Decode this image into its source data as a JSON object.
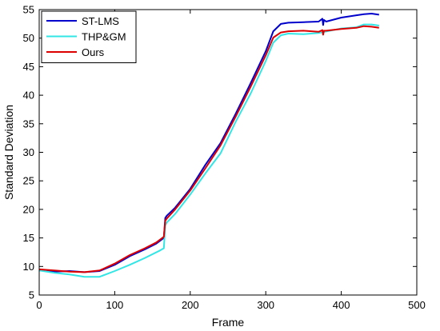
{
  "chart_data": {
    "type": "line",
    "title": "",
    "xlabel": "Frame",
    "ylabel": "Standard Deviation",
    "xlim": [
      0,
      500
    ],
    "ylim": [
      5,
      55
    ],
    "xticks": [
      0,
      100,
      200,
      300,
      400,
      500
    ],
    "yticks": [
      5,
      10,
      15,
      20,
      25,
      30,
      35,
      40,
      45,
      50,
      55
    ],
    "grid": false,
    "legend": "top-left",
    "series": [
      {
        "name": "ST-LMS",
        "color": "#0000cc",
        "x": [
          0,
          20,
          40,
          60,
          80,
          100,
          120,
          140,
          155,
          165,
          167,
          169,
          180,
          200,
          220,
          240,
          260,
          280,
          300,
          310,
          320,
          330,
          350,
          370,
          375,
          376,
          377,
          380,
          400,
          420,
          430,
          440,
          450
        ],
        "y": [
          9.3,
          9.1,
          9.2,
          9.0,
          9.2,
          10.3,
          11.8,
          13.0,
          14.0,
          15.0,
          18.5,
          18.9,
          20.3,
          23.6,
          27.8,
          31.6,
          36.7,
          42.1,
          47.7,
          51.2,
          52.5,
          52.7,
          52.8,
          52.9,
          53.4,
          52.3,
          53.2,
          52.9,
          53.6,
          54.0,
          54.2,
          54.3,
          54.1
        ]
      },
      {
        "name": "THP&GM",
        "color": "#33e6e6",
        "x": [
          0,
          20,
          40,
          60,
          80,
          100,
          120,
          140,
          160,
          165,
          167,
          169,
          180,
          200,
          220,
          240,
          260,
          280,
          300,
          310,
          320,
          330,
          350,
          370,
          378,
          400,
          420,
          430,
          440,
          450
        ],
        "y": [
          9.3,
          8.9,
          8.6,
          8.2,
          8.2,
          9.2,
          10.3,
          11.5,
          12.8,
          13.2,
          17.2,
          17.7,
          19.2,
          22.6,
          26.3,
          29.8,
          35.3,
          40.3,
          46.0,
          49.2,
          50.5,
          50.8,
          50.7,
          50.9,
          51.1,
          51.7,
          51.9,
          52.4,
          52.4,
          52.2
        ]
      },
      {
        "name": "Ours",
        "color": "#dd0000",
        "x": [
          0,
          20,
          40,
          60,
          80,
          100,
          120,
          140,
          155,
          165,
          167,
          169,
          180,
          200,
          220,
          240,
          260,
          280,
          300,
          310,
          320,
          330,
          350,
          370,
          375,
          376,
          377,
          380,
          400,
          420,
          430,
          440,
          450
        ],
        "y": [
          9.5,
          9.3,
          9.1,
          9.0,
          9.3,
          10.5,
          12.0,
          13.2,
          14.2,
          15.2,
          18.0,
          18.4,
          20.0,
          23.3,
          27.2,
          31.2,
          36.2,
          41.5,
          47.0,
          50.1,
          51.0,
          51.2,
          51.3,
          51.1,
          51.4,
          50.6,
          51.3,
          51.3,
          51.6,
          51.8,
          52.1,
          52.0,
          51.8
        ]
      }
    ]
  }
}
